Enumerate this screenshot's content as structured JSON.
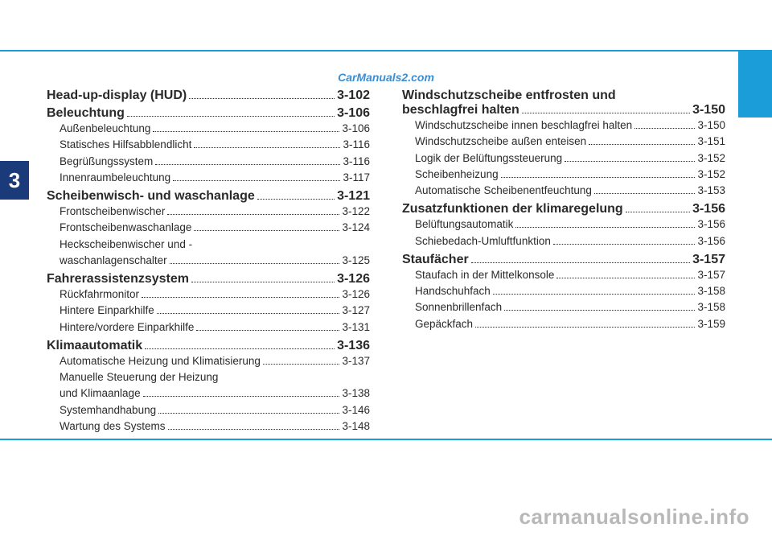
{
  "chapterNumber": "3",
  "watermarkTop": "CarManuals2.com",
  "watermarkBottom": "carmanualsonline.info",
  "colors": {
    "accent": "#1a9dd9",
    "tab": "#1a3a7a",
    "text": "#2a2a2a",
    "watermarkTop": "#3a8fd4",
    "watermarkBottom": "#b8b8b8"
  },
  "leftColumn": [
    {
      "type": "section",
      "label": "Head-up-display (HUD)",
      "page": "3-102"
    },
    {
      "type": "section",
      "label": "Beleuchtung",
      "page": "3-106"
    },
    {
      "type": "sub",
      "label": "Außenbeleuchtung",
      "page": "3-106"
    },
    {
      "type": "sub",
      "label": "Statisches Hilfsabblendlicht",
      "page": "3-116"
    },
    {
      "type": "sub",
      "label": "Begrüßungssystem",
      "page": "3-116"
    },
    {
      "type": "sub",
      "label": "Innenraumbeleuchtung",
      "page": "3-117"
    },
    {
      "type": "section",
      "label": "Scheibenwisch- und waschanlage",
      "page": "3-121"
    },
    {
      "type": "sub",
      "label": "Frontscheibenwischer",
      "page": "3-122"
    },
    {
      "type": "sub",
      "label": "Frontscheibenwaschanlage",
      "page": "3-124"
    },
    {
      "type": "sub-multi",
      "label1": "Heckscheibenwischer und -",
      "label2": "waschanlagenschalter",
      "page": "3-125"
    },
    {
      "type": "section",
      "label": "Fahrerassistenzsystem",
      "page": "3-126"
    },
    {
      "type": "sub",
      "label": "Rückfahrmonitor",
      "page": "3-126"
    },
    {
      "type": "sub",
      "label": "Hintere Einparkhilfe",
      "page": "3-127"
    },
    {
      "type": "sub",
      "label": "Hintere/vordere Einparkhilfe",
      "page": "3-131"
    },
    {
      "type": "section",
      "label": "Klimaautomatik",
      "page": "3-136"
    },
    {
      "type": "sub",
      "label": "Automatische Heizung und Klimatisierung",
      "page": "3-137"
    },
    {
      "type": "sub-multi",
      "label1": "Manuelle Steuerung der Heizung",
      "label2": "und Klimaanlage",
      "page": "3-138"
    },
    {
      "type": "sub",
      "label": "Systemhandhabung",
      "page": "3-146"
    },
    {
      "type": "sub",
      "label": "Wartung des Systems",
      "page": "3-148"
    }
  ],
  "rightColumn": [
    {
      "type": "section-multi",
      "label1": "Windschutzscheibe entfrosten und",
      "label2": "beschlagfrei halten",
      "page": "3-150"
    },
    {
      "type": "sub",
      "label": "Windschutzscheibe innen beschlagfrei halten",
      "page": "3-150"
    },
    {
      "type": "sub",
      "label": "Windschutzscheibe außen enteisen",
      "page": "3-151"
    },
    {
      "type": "sub",
      "label": "Logik der Belüftungssteuerung",
      "page": "3-152"
    },
    {
      "type": "sub",
      "label": "Scheibenheizung",
      "page": "3-152"
    },
    {
      "type": "sub",
      "label": "Automatische Scheibenentfeuchtung",
      "page": "3-153"
    },
    {
      "type": "section",
      "label": "Zusatzfunktionen der klimaregelung",
      "page": "3-156"
    },
    {
      "type": "sub",
      "label": "Belüftungsautomatik",
      "page": "3-156"
    },
    {
      "type": "sub",
      "label": "Schiebedach-Umluftfunktion",
      "page": "3-156"
    },
    {
      "type": "section",
      "label": "Staufächer",
      "page": "3-157"
    },
    {
      "type": "sub",
      "label": "Staufach in der Mittelkonsole",
      "page": "3-157"
    },
    {
      "type": "sub",
      "label": "Handschuhfach",
      "page": "3-158"
    },
    {
      "type": "sub",
      "label": "Sonnenbrillenfach",
      "page": "3-158"
    },
    {
      "type": "sub",
      "label": "Gepäckfach",
      "page": "3-159"
    }
  ]
}
